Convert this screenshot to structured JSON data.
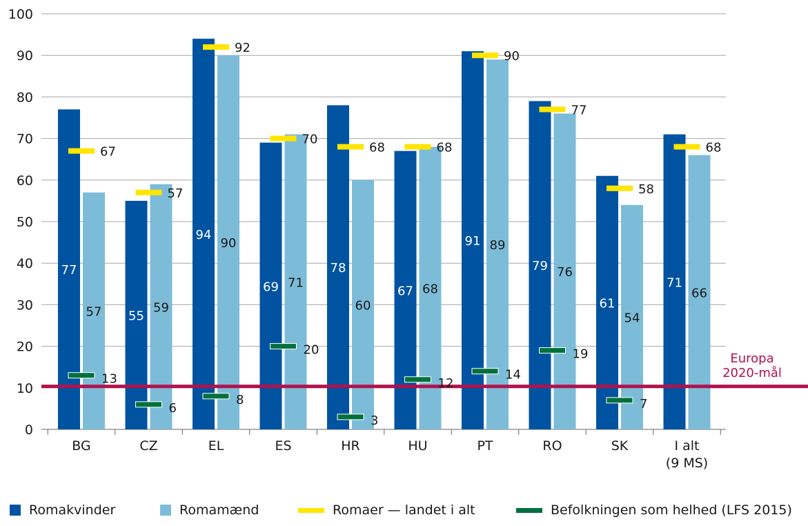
{
  "colors": {
    "women": "#0053A1",
    "men": "#7DBCD8",
    "roma_total": "#FFE500",
    "general_population": "#00703C",
    "target": "#B0124C",
    "grid": "#A6A6A6",
    "axis": "#666666"
  },
  "target_label": [
    "Europa",
    "2020-mål"
  ],
  "legend": {
    "women": "Romakvinder",
    "men": "Romamænd",
    "roma_total": "Romaer — landet i alt",
    "general_population": "Befolkningen som helhed (LFS 2015)"
  },
  "chart_data": {
    "type": "bar",
    "categories": [
      [
        "BG"
      ],
      [
        "CZ"
      ],
      [
        "EL"
      ],
      [
        "ES"
      ],
      [
        "HR"
      ],
      [
        "HU"
      ],
      [
        "PT"
      ],
      [
        "RO"
      ],
      [
        "SK"
      ],
      [
        "I alt",
        "(9 MS)"
      ]
    ],
    "ylim": [
      0,
      100
    ],
    "yticks": [
      0,
      10,
      20,
      30,
      40,
      50,
      60,
      70,
      80,
      90,
      100
    ],
    "series": [
      {
        "name": "Romakvinder",
        "kind": "bar",
        "values": [
          77,
          55,
          94,
          69,
          78,
          67,
          91,
          79,
          61,
          71
        ]
      },
      {
        "name": "Romamænd",
        "kind": "bar",
        "values": [
          57,
          59,
          90,
          71,
          60,
          68,
          89,
          76,
          54,
          66
        ]
      },
      {
        "name": "Romaer — landet i alt",
        "kind": "marker",
        "values": [
          67,
          57,
          92,
          70,
          68,
          68,
          90,
          77,
          58,
          68
        ]
      },
      {
        "name": "Befolkningen som helhed (LFS 2015)",
        "kind": "marker",
        "values": [
          13,
          6,
          8,
          20,
          3,
          12,
          14,
          19,
          7,
          null
        ]
      }
    ],
    "target": {
      "value": 10,
      "label": "Europa 2020-mål"
    },
    "grid": true,
    "legend_position": "bottom"
  }
}
